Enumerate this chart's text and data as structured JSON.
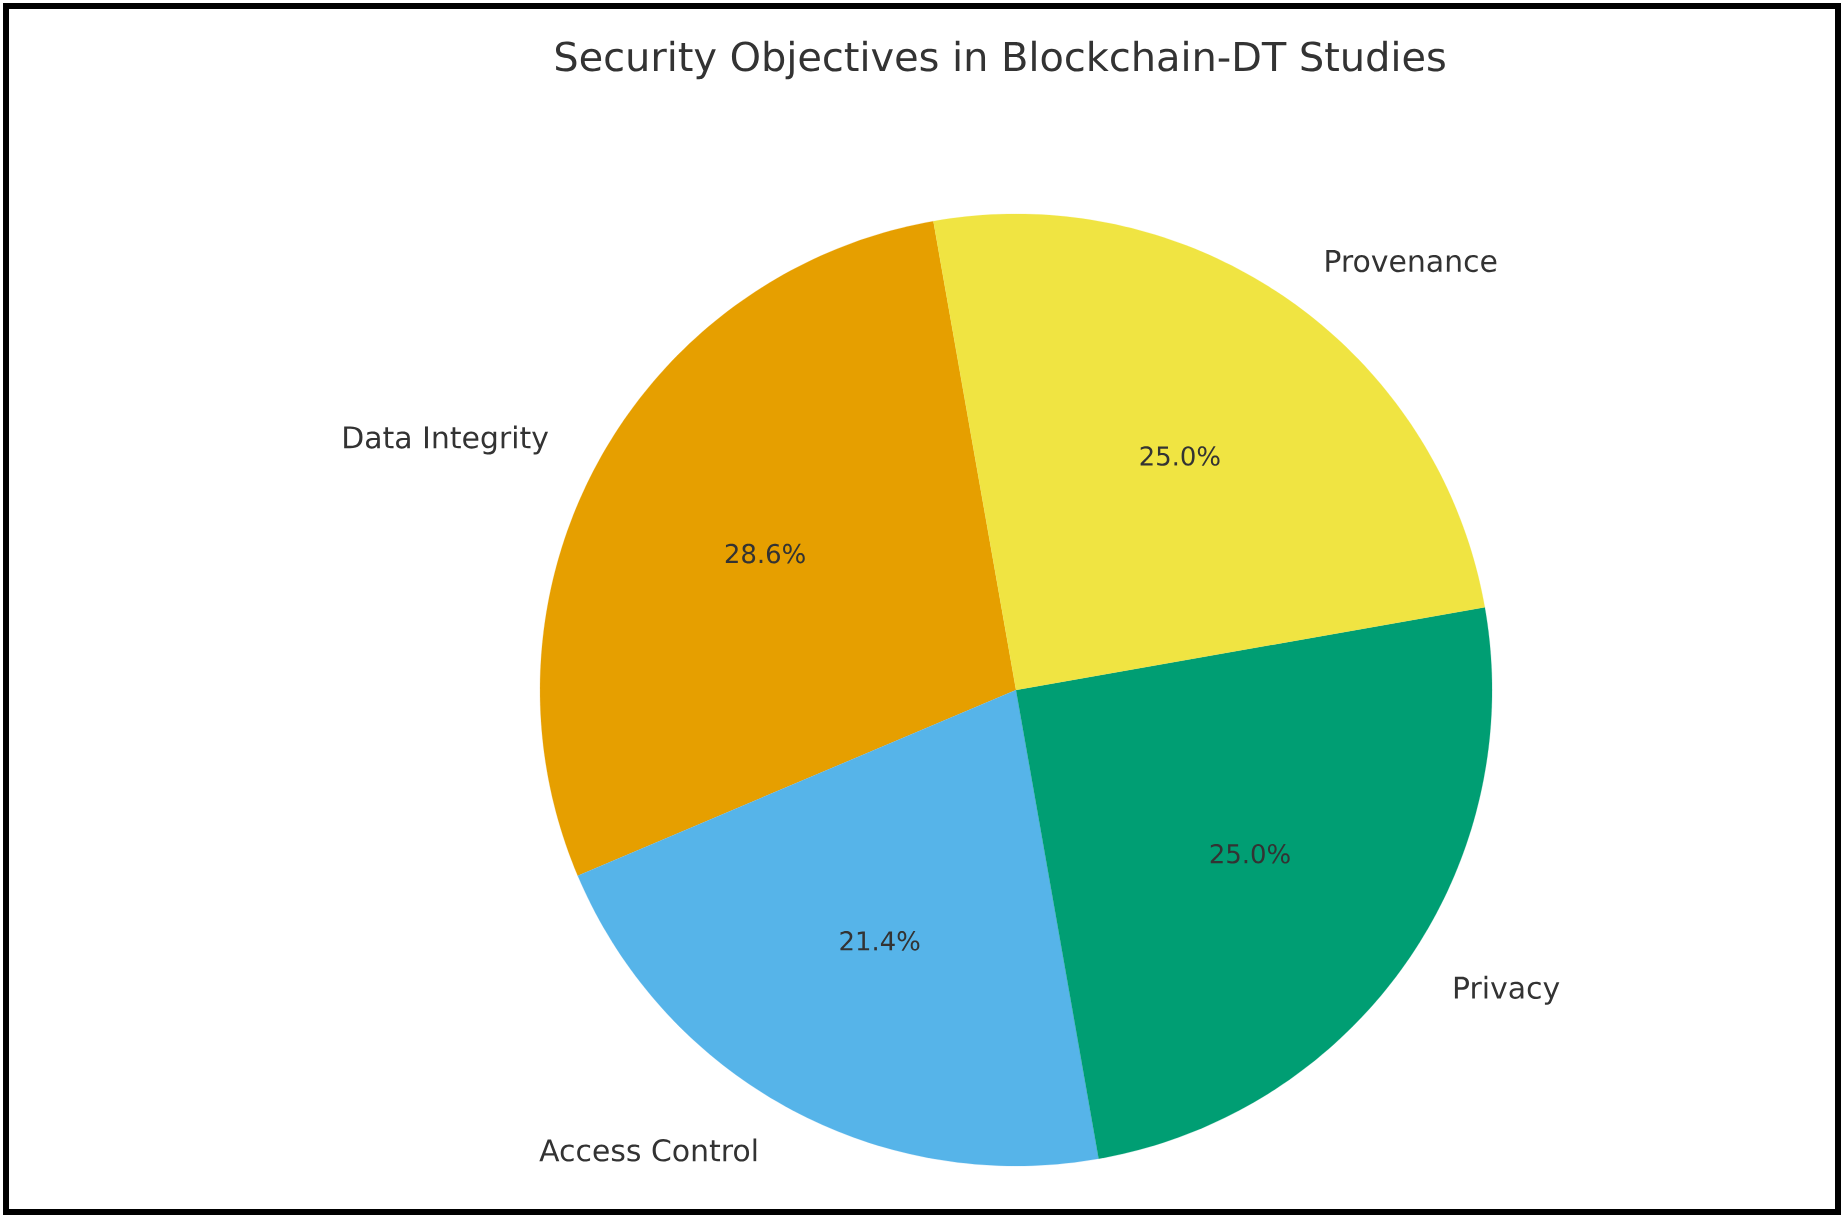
{
  "chart_data": {
    "type": "pie",
    "title": "Security Objectives in Blockchain-DT Studies",
    "categories": [
      "Data Integrity",
      "Access Control",
      "Privacy",
      "Provenance"
    ],
    "values": [
      28.6,
      21.4,
      25.0,
      25.0
    ],
    "value_labels": [
      "28.6%",
      "21.4%",
      "25.0%",
      "25.0%"
    ],
    "colors": [
      "#e69f00",
      "#56b4e9",
      "#009e73",
      "#f0e442"
    ]
  }
}
